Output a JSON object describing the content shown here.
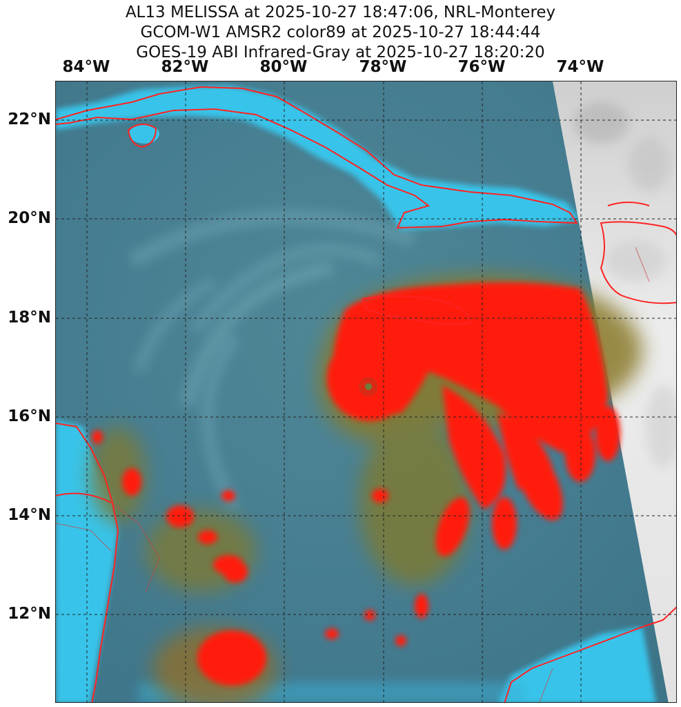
{
  "title": {
    "line1": "AL13 MELISSA at 2025-10-27 18:47:06, NRL-Monterey",
    "line2": "GCOM-W1 AMSR2 color89 at 2025-10-27 18:44:44",
    "line3": "GOES-19 ABI Infrared-Gray at 2025-10-27 18:20:20"
  },
  "map": {
    "longitude_labels": [
      "84°W",
      "82°W",
      "80°W",
      "78°W",
      "76°W",
      "74°W"
    ],
    "latitude_labels": [
      "22°N",
      "20°N",
      "18°N",
      "16°N",
      "14°N",
      "12°N"
    ],
    "colors": {
      "ocean_background": "#4a7f92",
      "clear_sky_cyan": "#36c6ee",
      "convection_red": "#ff1a10",
      "coastline": "#ff2020",
      "ir_gray": "#e4e4e4",
      "gridline": "#222222"
    },
    "gridline_style": "dashed",
    "storm_center_marker": "eye"
  }
}
